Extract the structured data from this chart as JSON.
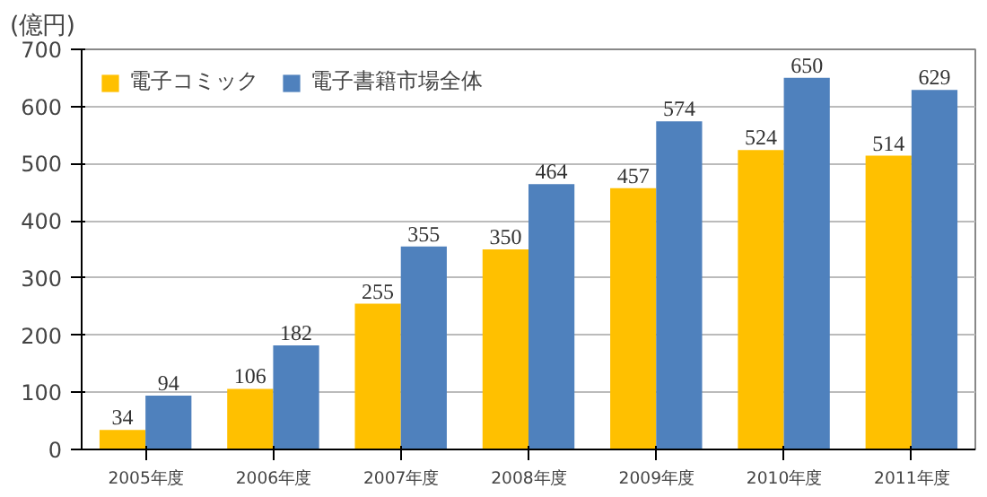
{
  "chart_data": {
    "type": "bar",
    "ylabel": "(億円)",
    "categories": [
      "2005年度",
      "2006年度",
      "2007年度",
      "2008年度",
      "2009年度",
      "2010年度",
      "2011年度"
    ],
    "series": [
      {
        "name": "電子コミック",
        "color": "#ffc000",
        "values": [
          34,
          106,
          255,
          350,
          457,
          524,
          514
        ]
      },
      {
        "name": "電子書籍市場全体",
        "color": "#4f81bd",
        "values": [
          94,
          182,
          355,
          464,
          574,
          650,
          629
        ]
      }
    ],
    "ylim": [
      0,
      700
    ],
    "yticks": [
      0,
      100,
      200,
      300,
      400,
      500,
      600,
      700
    ],
    "grid": "y",
    "legend": "top left",
    "data_labels": true
  }
}
